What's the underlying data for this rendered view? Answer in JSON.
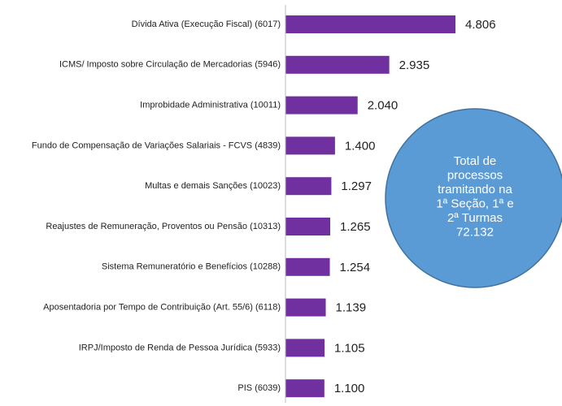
{
  "chart_data": {
    "type": "bar",
    "orientation": "horizontal",
    "categories": [
      "Dívida Ativa (Execução Fiscal) (6017)",
      "ICMS/ Imposto sobre Circulação de Mercadorias (5946)",
      "Improbidade Administrativa (10011)",
      "Fundo de Compensação de Variações Salariais - FCVS (4839)",
      "Multas e demais Sanções (10023)",
      "Reajustes de Remuneração, Proventos ou Pensão (10313)",
      "Sistema Remuneratório e Benefícios (10288)",
      "Aposentadoria por Tempo de Contribuição (Art. 55/6) (6118)",
      "IRPJ/Imposto de Renda de Pessoa Jurídica (5933)",
      "PIS (6039)"
    ],
    "values": [
      4806,
      2935,
      2040,
      1400,
      1297,
      1265,
      1254,
      1139,
      1105,
      1100
    ],
    "value_labels": [
      "4.806",
      "2.935",
      "2.040",
      "1.400",
      "1.297",
      "1.265",
      "1.254",
      "1.139",
      "1.105",
      "1.100"
    ],
    "color": "#7030a0",
    "annotation": {
      "lines": [
        "Total de",
        "processos",
        "tramitando na",
        "1ª Seção, 1ª e",
        "2ª Turmas",
        "72.132"
      ],
      "color": "#5b9bd5"
    }
  }
}
